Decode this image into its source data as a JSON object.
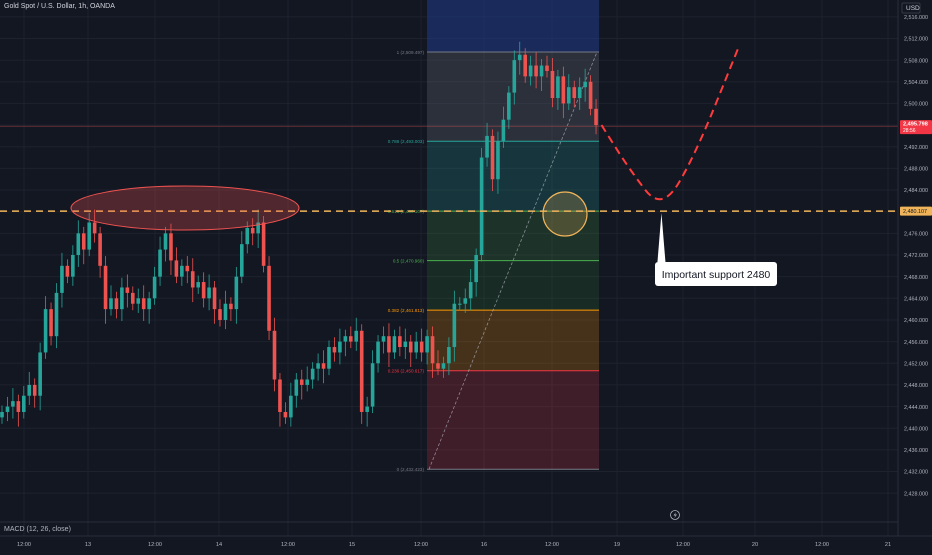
{
  "header": {
    "title": "Gold Spot / U.S. Dollar, 1h, OANDA",
    "currency": "USD"
  },
  "indicator": {
    "label": "MACD (12, 26, close)"
  },
  "price_label": {
    "value": "2,495.798",
    "sub": "28:56"
  },
  "support_label": {
    "value": "2,480.107"
  },
  "annotation": {
    "text": "Important support 2480"
  },
  "colors": {
    "background": "#131722",
    "up": "#26a69a",
    "down": "#ef5350",
    "support_line": "#f0b45a",
    "projection": "#ff3b3b"
  },
  "chart_data": {
    "type": "candlestick",
    "y_axis": {
      "range": [
        2426,
        2518
      ],
      "ticks": [
        "2,516.000",
        "2,512.000",
        "2,508.000",
        "2,504.000",
        "2,500.000",
        "2,496.000",
        "2,492.000",
        "2,488.000",
        "2,484.000",
        "2,480.000",
        "2,476.000",
        "2,472.000",
        "2,468.000",
        "2,464.000",
        "2,460.000",
        "2,456.000",
        "2,452.000",
        "2,448.000",
        "2,444.000",
        "2,440.000",
        "2,436.000",
        "2,432.000",
        "2,428.000"
      ]
    },
    "x_axis": {
      "ticks": [
        "12:00",
        "13",
        "12:00",
        "14",
        "12:00",
        "15",
        "12:00",
        "16",
        "12:00",
        "19",
        "12:00",
        "20",
        "12:00",
        "21"
      ]
    },
    "closes": [
      2443,
      2444,
      2445,
      2443,
      2446,
      2448,
      2446,
      2454,
      2462,
      2457,
      2465,
      2470,
      2468,
      2472,
      2476,
      2473,
      2478,
      2476,
      2470,
      2462,
      2464,
      2462,
      2466,
      2465,
      2463,
      2464,
      2462,
      2464,
      2468,
      2473,
      2476,
      2471,
      2468,
      2470,
      2469,
      2466,
      2467,
      2464,
      2466,
      2462,
      2460,
      2463,
      2462,
      2468,
      2474,
      2477,
      2476,
      2478,
      2470,
      2458,
      2449,
      2443,
      2442,
      2446,
      2449,
      2448,
      2449,
      2451,
      2452,
      2451,
      2455,
      2454,
      2456,
      2457,
      2456,
      2458,
      2443,
      2444,
      2452,
      2456,
      2457,
      2454,
      2457,
      2455,
      2456,
      2454,
      2456,
      2454,
      2457,
      2452,
      2451,
      2452,
      2455,
      2463,
      2463,
      2464,
      2467,
      2472,
      2490,
      2494,
      2486,
      2493,
      2497,
      2502,
      2508,
      2509,
      2505,
      2507,
      2505,
      2507,
      2506,
      2501,
      2505,
      2500,
      2503,
      2501,
      2503,
      2504,
      2499,
      2496
    ],
    "fib_levels": [
      {
        "ratio": "1",
        "price": 2509.497,
        "label": "1 (2,509.497)",
        "color": "#787b86"
      },
      {
        "ratio": "0.786",
        "price": 2493.003,
        "label": "0.786 (2,493.003)",
        "color": "#26a69a"
      },
      {
        "ratio": "0.618",
        "price": 2480.107,
        "label": "0.618 (2,480.107)",
        "color": "#4caf50"
      },
      {
        "ratio": "0.5",
        "price": 2470.96,
        "label": "0.5 (2,470.960)",
        "color": "#4caf50"
      },
      {
        "ratio": "0.382",
        "price": 2461.813,
        "label": "0.382 (2,461.813)",
        "color": "#ff9800"
      },
      {
        "ratio": "0.236",
        "price": 2450.617,
        "label": "0.236 (2,450.617)",
        "color": "#f23645"
      },
      {
        "ratio": "0",
        "price": 2432.423,
        "label": "0 (2,432.423)",
        "color": "#787b86"
      }
    ],
    "support_level": 2480.107,
    "current_price": 2495.798,
    "projection_path": [
      {
        "bar": 110,
        "price": 2496
      },
      {
        "bar": 115,
        "price": 2488
      },
      {
        "bar": 121,
        "price": 2480.107
      },
      {
        "bar": 127,
        "price": 2490
      },
      {
        "bar": 135,
        "price": 2510
      }
    ]
  }
}
